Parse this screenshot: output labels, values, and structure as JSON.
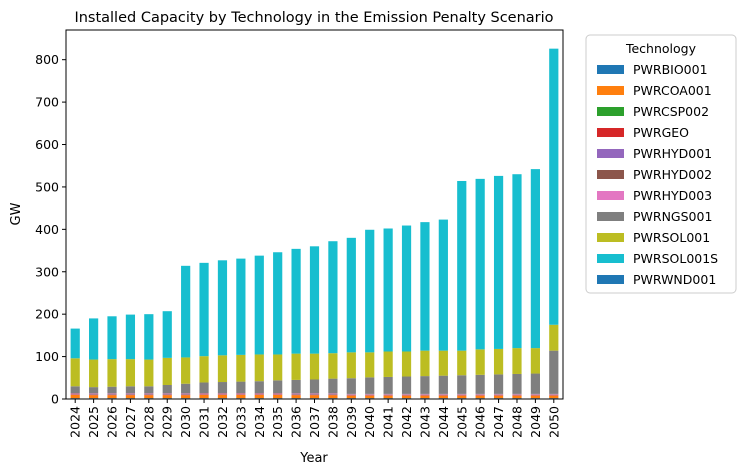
{
  "chart_data": {
    "type": "bar",
    "stacked": true,
    "title": "Installed Capacity by Technology in the Emission Penalty Scenario",
    "xlabel": "Year",
    "ylabel": "GW",
    "ylim": [
      0,
      870
    ],
    "yticks": [
      0,
      100,
      200,
      300,
      400,
      500,
      600,
      700,
      800
    ],
    "grid": false,
    "legend_title": "Technology",
    "legend_position": "outside-right",
    "categories": [
      "2024",
      "2025",
      "2026",
      "2027",
      "2028",
      "2029",
      "2030",
      "2031",
      "2032",
      "2033",
      "2034",
      "2035",
      "2036",
      "2037",
      "2038",
      "2039",
      "2040",
      "2041",
      "2042",
      "2043",
      "2044",
      "2045",
      "2046",
      "2047",
      "2048",
      "2049",
      "2050"
    ],
    "series": [
      {
        "name": "PWRBIO001",
        "color": "#1f77b4",
        "values": [
          2,
          2,
          2,
          2,
          2,
          2,
          2,
          2,
          2,
          2,
          2,
          2,
          2,
          2,
          2,
          2,
          2,
          2,
          2,
          2,
          2,
          2,
          2,
          2,
          2,
          2,
          2
        ]
      },
      {
        "name": "PWRCOA001",
        "color": "#ff7f0e",
        "values": [
          8,
          7,
          7,
          7,
          7,
          7,
          7,
          8,
          8,
          8,
          8,
          8,
          7,
          7,
          7,
          6,
          6,
          6,
          6,
          6,
          6,
          6,
          6,
          6,
          6,
          6,
          6
        ]
      },
      {
        "name": "PWRCSP002",
        "color": "#2ca02c",
        "values": [
          0,
          0,
          0,
          0,
          0,
          0,
          0,
          0,
          0,
          0,
          0,
          0,
          0,
          0,
          0,
          0,
          0,
          0,
          0,
          0,
          0,
          0,
          0,
          0,
          0,
          0,
          0
        ]
      },
      {
        "name": "PWRGEO",
        "color": "#d62728",
        "values": [
          1,
          1,
          1,
          1,
          1,
          1,
          1,
          1,
          1,
          1,
          1,
          1,
          1,
          1,
          1,
          1,
          1,
          1,
          1,
          1,
          1,
          1,
          1,
          1,
          1,
          1,
          1
        ]
      },
      {
        "name": "PWRHYD001",
        "color": "#9467bd",
        "values": [
          1,
          1,
          1,
          1,
          1,
          1,
          1,
          1,
          1,
          1,
          1,
          1,
          1,
          1,
          1,
          1,
          1,
          1,
          1,
          1,
          1,
          1,
          1,
          1,
          1,
          1,
          1
        ]
      },
      {
        "name": "PWRHYD002",
        "color": "#8c564b",
        "values": [
          1,
          1,
          1,
          1,
          1,
          1,
          1,
          1,
          1,
          1,
          1,
          1,
          1,
          1,
          1,
          1,
          1,
          1,
          1,
          1,
          1,
          1,
          1,
          1,
          1,
          1,
          1
        ]
      },
      {
        "name": "PWRHYD003",
        "color": "#e377c2",
        "values": [
          1,
          1,
          1,
          1,
          1,
          1,
          1,
          1,
          1,
          1,
          1,
          1,
          1,
          1,
          1,
          1,
          1,
          1,
          1,
          1,
          1,
          1,
          1,
          1,
          1,
          1,
          1
        ]
      },
      {
        "name": "PWRNGS001",
        "color": "#7f7f7f",
        "values": [
          16,
          15,
          16,
          17,
          17,
          20,
          23,
          25,
          26,
          27,
          28,
          30,
          32,
          33,
          35,
          37,
          39,
          40,
          41,
          42,
          43,
          44,
          45,
          46,
          47,
          48,
          102
        ]
      },
      {
        "name": "PWRSOL001",
        "color": "#bcbd22",
        "values": [
          66,
          65,
          65,
          64,
          63,
          64,
          62,
          62,
          63,
          63,
          63,
          61,
          62,
          61,
          60,
          61,
          59,
          60,
          59,
          60,
          59,
          58,
          60,
          60,
          61,
          60,
          61
        ]
      },
      {
        "name": "PWRSOL001S",
        "color": "#17becf",
        "values": [
          70,
          97,
          101,
          105,
          107,
          110,
          216,
          220,
          224,
          227,
          233,
          241,
          247,
          253,
          264,
          270,
          289,
          290,
          297,
          303,
          309,
          400,
          402,
          408,
          410,
          422,
          651
        ]
      },
      {
        "name": "PWRWND001",
        "color": "#1f77b4",
        "values": [
          0,
          0,
          0,
          0,
          0,
          0,
          0,
          0,
          0,
          0,
          0,
          0,
          0,
          0,
          0,
          0,
          0,
          0,
          0,
          0,
          0,
          0,
          0,
          0,
          0,
          0,
          0
        ]
      }
    ]
  }
}
